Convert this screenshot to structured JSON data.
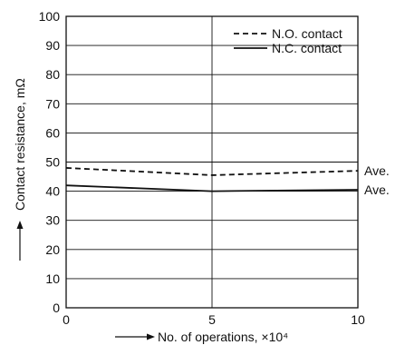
{
  "chart_data": {
    "type": "line",
    "title": "",
    "xlabel": "No. of operations, ×10⁴",
    "ylabel": "Contact resistance, mΩ",
    "xlim": [
      0,
      10
    ],
    "ylim": [
      0,
      100
    ],
    "xticks": [
      0,
      5,
      10
    ],
    "yticks": [
      0,
      10,
      20,
      30,
      40,
      50,
      60,
      70,
      80,
      90,
      100
    ],
    "grid": true,
    "legend_position": "top-right",
    "series": [
      {
        "name": "N.O. contact",
        "style": "dashed",
        "end_label": "Ave.",
        "x": [
          0,
          5,
          10
        ],
        "y": [
          48,
          45.5,
          47
        ]
      },
      {
        "name": "N.C. contact",
        "style": "solid",
        "end_label": "Ave.",
        "x": [
          0,
          5,
          10
        ],
        "y": [
          42,
          40,
          40.5
        ]
      }
    ]
  }
}
